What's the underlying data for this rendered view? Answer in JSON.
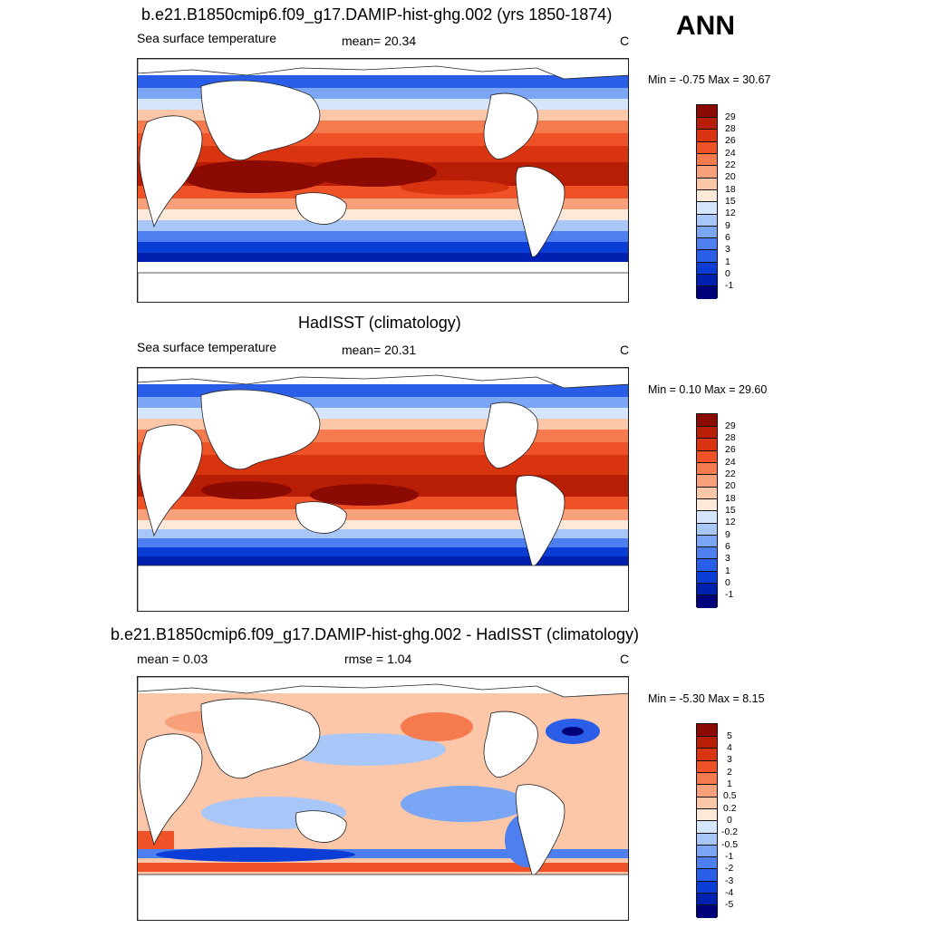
{
  "season": "ANN",
  "colors": {
    "abs_palette": [
      "#00007a",
      "#0020b0",
      "#0a3cd6",
      "#2b5ee8",
      "#4d7ff0",
      "#7ba5f5",
      "#a8c6f8",
      "#d5e5fb",
      "#fde9d9",
      "#fbc7a8",
      "#f7a07a",
      "#f57a4e",
      "#ef5226",
      "#d93410",
      "#b81e06",
      "#8c0a04"
    ],
    "diff_palette": [
      "#00007a",
      "#0020b0",
      "#0a3cd6",
      "#2b5ee8",
      "#4d7ff0",
      "#7ba5f5",
      "#a8c6f8",
      "#d5e5fb",
      "#fde9d9",
      "#fbc7a8",
      "#f7a07a",
      "#f57a4e",
      "#ef5226",
      "#d93410",
      "#b81e06",
      "#8c0a04"
    ]
  },
  "panels": [
    {
      "id": "model",
      "title": "b.e21.B1850cmip6.f09_g17.DAMIP-hist-ghg.002 (yrs 1850-1874)",
      "left_label": "Sea surface temperature",
      "stat_label": "mean=  20.34",
      "units": "C",
      "minmax": "Min =  -0.75 Max =  30.67",
      "colorbar_labels": [
        "29",
        "28",
        "26",
        "24",
        "22",
        "20",
        "18",
        "15",
        "12",
        "9",
        "6",
        "3",
        "1",
        "0",
        "-1"
      ]
    },
    {
      "id": "obs",
      "title": "HadISST (climatology)",
      "left_label": "Sea surface temperature",
      "stat_label": "mean=  20.31",
      "units": "C",
      "minmax": "Min =   0.10 Max =  29.60",
      "colorbar_labels": [
        "29",
        "28",
        "26",
        "24",
        "22",
        "20",
        "18",
        "15",
        "12",
        "9",
        "6",
        "3",
        "1",
        "0",
        "-1"
      ]
    },
    {
      "id": "diff",
      "title": "b.e21.B1850cmip6.f09_g17.DAMIP-hist-ghg.002 - HadISST (climatology)",
      "left_label": "mean =   0.03",
      "stat_label": "rmse =   1.04",
      "units": "C",
      "minmax": "Min =  -5.30 Max =   8.15",
      "colorbar_labels": [
        "5",
        "4",
        "3",
        "2",
        "1",
        "0.5",
        "0.2",
        "0",
        "-0.2",
        "-0.5",
        "-1",
        "-2",
        "-3",
        "-4",
        "-5"
      ]
    }
  ]
}
